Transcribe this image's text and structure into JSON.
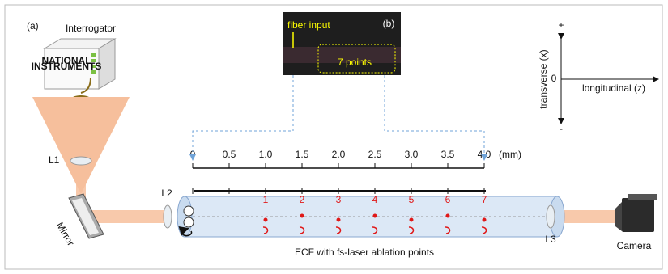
{
  "panel_a": {
    "label": "(a)",
    "interrogator": {
      "label": "Interrogator",
      "logo": [
        "NATIONAL",
        "INSTRUMENTS"
      ]
    },
    "lenses": [
      "L1",
      "L2",
      "L3"
    ],
    "mirror": "Mirror",
    "camera": "Camera",
    "fiber_caption": "ECF with fs-laser ablation points",
    "scale": {
      "ticks": [
        "0",
        "0.5",
        "1.0",
        "1.5",
        "2.0",
        "2.5",
        "3.0",
        "3.5",
        "4.0"
      ],
      "unit": "(mm)"
    },
    "points": [
      "1",
      "2",
      "3",
      "4",
      "5",
      "6",
      "7"
    ]
  },
  "panel_b": {
    "label": "(b)",
    "fiber_input": "fiber input",
    "points_label": "7 points"
  },
  "axes": {
    "plus": "+",
    "minus": "-",
    "origin": "0",
    "transverse": "transverse (x)",
    "longitudinal": "longitudinal (z)"
  }
}
